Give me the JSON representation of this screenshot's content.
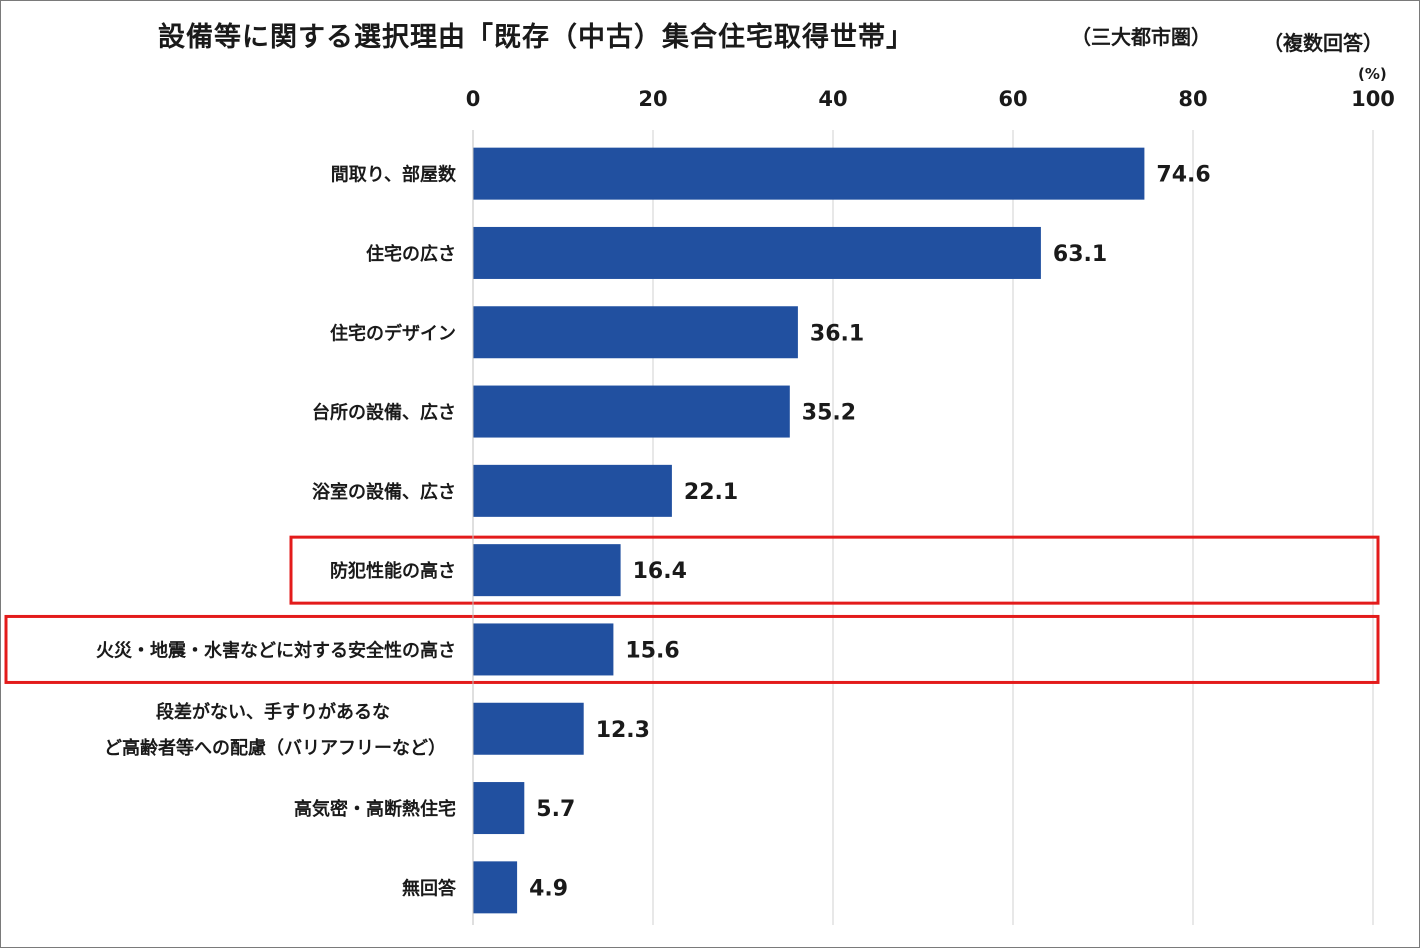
{
  "title": "設備等に関する選択理由「既存（中古）集合住宅取得世帯」",
  "subtitle": "（三大都市圏）",
  "note": "（複数回答）",
  "unit_label": "(%)",
  "colors": {
    "bar": "#2150a0",
    "highlight": "#e31b1b",
    "grid": "#d0d0d0"
  },
  "chart_data": {
    "type": "bar",
    "orientation": "horizontal",
    "title": "設備等に関する選択理由「既存（中古）集合住宅取得世帯」",
    "xlim": [
      0,
      100
    ],
    "xticks": [
      0,
      20,
      40,
      60,
      80,
      100
    ],
    "grid": true,
    "categories": [
      [
        "間取り、部屋数"
      ],
      [
        "住宅の広さ"
      ],
      [
        "住宅のデザイン"
      ],
      [
        "台所の設備、広さ"
      ],
      [
        "浴室の設備、広さ"
      ],
      [
        "防犯性能の高さ"
      ],
      [
        "火災・地震・水害などに対する安全性の高さ"
      ],
      [
        "段差がない、手すりがあるな",
        "ど高齢者等への配慮（バリアフリーなど）"
      ],
      [
        "高気密・高断熱住宅"
      ],
      [
        "無回答"
      ]
    ],
    "values": [
      74.6,
      63.1,
      36.1,
      35.2,
      22.1,
      16.4,
      15.6,
      12.3,
      5.7,
      4.9
    ],
    "value_labels": [
      "74.6",
      "63.1",
      "36.1",
      "35.2",
      "22.1",
      "16.4",
      "15.6",
      "12.3",
      "5.7",
      "4.9"
    ],
    "highlighted": [
      "防犯性能の高さ",
      "火災・地震・水害などに対する安全性の高さ"
    ]
  }
}
